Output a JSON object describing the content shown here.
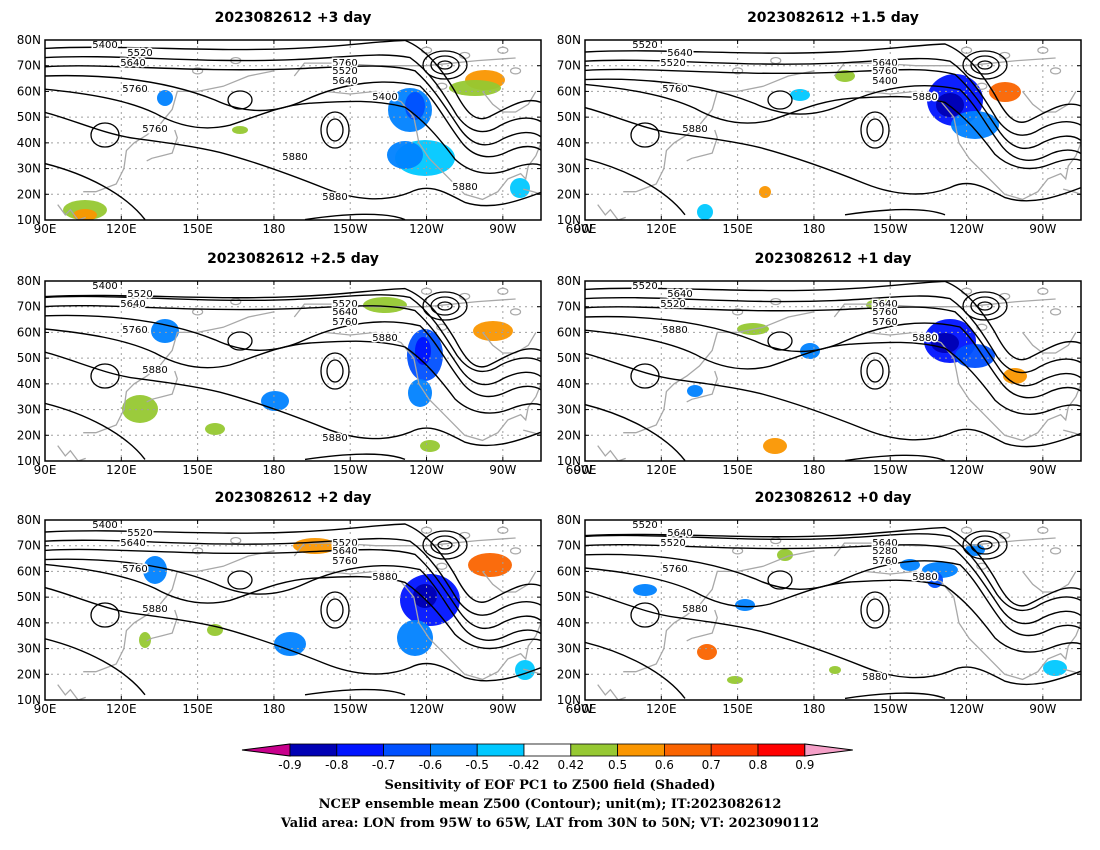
{
  "panels": [
    {
      "title": "2023082612 +3 day",
      "contour_labels": [
        "5400",
        "5520",
        "5640",
        "5760",
        "5520",
        "5640",
        "5760",
        "5400",
        "5760",
        "5880",
        "5880",
        "5880"
      ]
    },
    {
      "title": "2023082612 +1.5 day",
      "contour_labels": [
        "5520",
        "5640",
        "5520",
        "5640",
        "5760",
        "5400",
        "5760",
        "5880",
        "5880"
      ]
    },
    {
      "title": "2023082612 +2.5 day",
      "contour_labels": [
        "5400",
        "5520",
        "5640",
        "5520",
        "5640",
        "5760",
        "5760",
        "5880",
        "5880",
        "5880"
      ]
    },
    {
      "title": "2023082612 +1 day",
      "contour_labels": [
        "5520",
        "5640",
        "5520",
        "5640",
        "5760",
        "5760",
        "5880",
        "5880"
      ]
    },
    {
      "title": "2023082612 +2 day",
      "contour_labels": [
        "5400",
        "5520",
        "5640",
        "5520",
        "5640",
        "5760",
        "5760",
        "5880",
        "5880"
      ]
    },
    {
      "title": "2023082612 +0 day",
      "contour_labels": [
        "5520",
        "5640",
        "5520",
        "5640",
        "5280",
        "5760",
        "5760",
        "5880",
        "5880",
        "5880"
      ]
    }
  ],
  "axes": {
    "lat_ticks": [
      "80N",
      "70N",
      "60N",
      "50N",
      "40N",
      "30N",
      "20N",
      "10N"
    ],
    "lon_ticks": [
      "90E",
      "120E",
      "150E",
      "180",
      "150W",
      "120W",
      "90W",
      "60W"
    ]
  },
  "colorbar": {
    "tick_labels": [
      "-0.9",
      "-0.8",
      "-0.7",
      "-0.6",
      "-0.5",
      "-0.42",
      "0.42",
      "0.5",
      "0.6",
      "0.7",
      "0.8",
      "0.9"
    ],
    "under_color": "#c8008c",
    "over_color": "#f5a0c8",
    "colors": [
      "#0000b4",
      "#0014ff",
      "#0050ff",
      "#0082ff",
      "#00c8ff",
      "#ffffff",
      "#96c832",
      "#fa9600",
      "#fa6400",
      "#ff3c00",
      "#ff0000"
    ]
  },
  "caption": {
    "line1": "Sensitivity of EOF PC1 to Z500 field (Shaded)",
    "line2": "NCEP ensemble mean Z500 (Contour); unit(m); IT:2023082612",
    "line3": "Valid area: LON from 95W to 65W, LAT from 30N to 50N; VT: 2023090112"
  }
}
